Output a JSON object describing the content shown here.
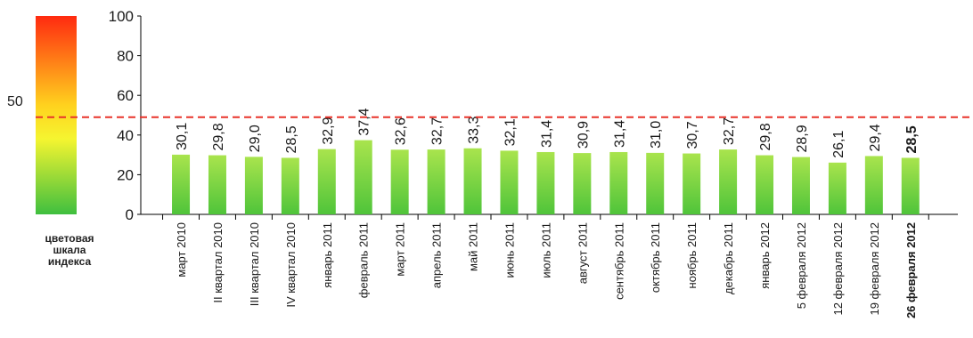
{
  "scale": {
    "caption_lines": [
      "цветовая",
      "шкала",
      "индекса"
    ],
    "mark": "50"
  },
  "colors": {
    "scale_top": "#ff2a10",
    "scale_mid": "#ffd21e",
    "scale_low": "#f5f530",
    "scale_bottom": "#3fbf3f",
    "bar_top": "#a9e44d",
    "bar_bottom": "#4fc43a",
    "reference_line": "#e8332a"
  },
  "chart_data": {
    "type": "bar",
    "ylim": [
      0,
      100
    ],
    "yticks": [
      0,
      20,
      40,
      60,
      80,
      100
    ],
    "reference_value": 49,
    "categories": [
      "март 2010",
      "II квартал 2010",
      "III квартал 2010",
      "IV квартал 2010",
      "январь 2011",
      "февраль 2011",
      "март 2011",
      "апрель 2011",
      "май 2011",
      "июнь 2011",
      "июль 2011",
      "август 2011",
      "сентябрь 2011",
      "октябрь 2011",
      "ноябрь 2011",
      "декабрь 2011",
      "январь 2012",
      "5 февраля 2012",
      "12 февраля 2012",
      "19 февраля 2012",
      "26 февраля 2012"
    ],
    "values": [
      30.1,
      29.8,
      29.0,
      28.5,
      32.9,
      37.4,
      32.6,
      32.7,
      33.3,
      32.1,
      31.4,
      30.9,
      31.4,
      31.0,
      30.7,
      32.7,
      29.8,
      28.9,
      26.1,
      29.4,
      28.5
    ],
    "value_labels": [
      "30,1",
      "29,8",
      "29,0",
      "28,5",
      "32,9",
      "37,4",
      "32,6",
      "32,7",
      "33,3",
      "32,1",
      "31,4",
      "30,9",
      "31,4",
      "31,0",
      "30,7",
      "32,7",
      "29,8",
      "28,9",
      "26,1",
      "29,4",
      "28,5"
    ],
    "highlight_index": 20
  }
}
